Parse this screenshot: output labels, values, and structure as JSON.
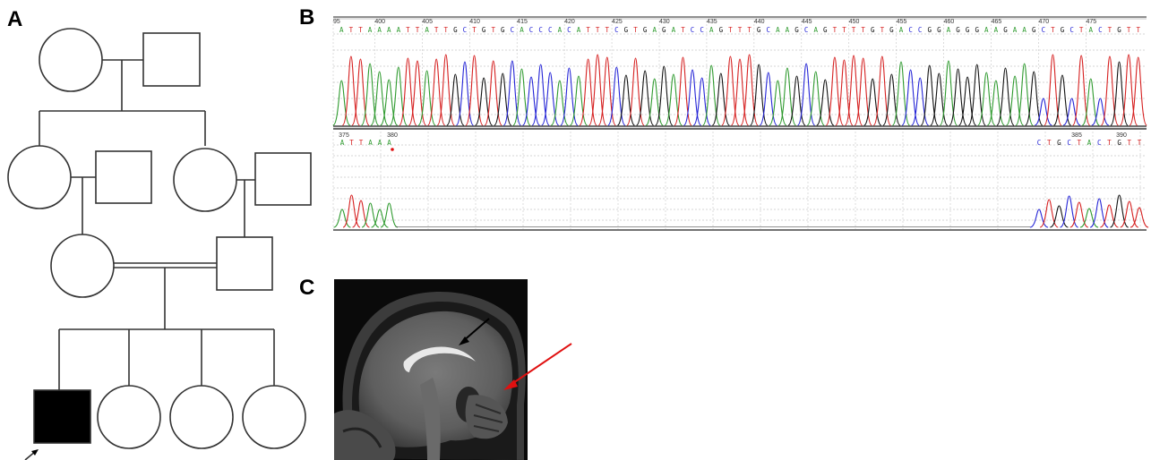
{
  "panels": {
    "a": "A",
    "b": "B",
    "c": "C"
  },
  "colors": {
    "A": "#2e9a2e",
    "C": "#2424d6",
    "G": "#111111",
    "T": "#d62020",
    "proband_fill": "#000000",
    "mri_arrow_corpus": "#000000",
    "mri_arrow_cerebellum": "#e01010"
  },
  "pedigree": {
    "generations": [
      {
        "individuals": [
          {
            "sex": "female",
            "affected": false
          },
          {
            "sex": "male",
            "affected": false
          }
        ]
      },
      {
        "individuals": [
          {
            "sex": "female",
            "affected": false
          },
          {
            "sex": "male",
            "affected": false
          },
          {
            "sex": "female",
            "affected": false
          },
          {
            "sex": "male",
            "affected": false
          }
        ]
      },
      {
        "individuals": [
          {
            "sex": "female",
            "affected": false
          },
          {
            "sex": "male",
            "affected": false
          }
        ],
        "consanguineous": true
      },
      {
        "individuals": [
          {
            "sex": "male",
            "affected": true,
            "proband": true
          },
          {
            "sex": "female",
            "affected": false
          },
          {
            "sex": "female",
            "affected": false
          },
          {
            "sex": "female",
            "affected": false
          }
        ]
      }
    ]
  },
  "sequencing": {
    "reference": {
      "sequence": "ATTAAAATTATTGCTGTGCACCCACATTTCGTGAGATCCAGTTTGCAAGCAGTTTTGTGACCGGAGGGAAGAAGCTGCTACTGTT",
      "ticks": [
        "95",
        "400",
        "405",
        "410",
        "415",
        "420",
        "425",
        "430",
        "435",
        "440",
        "445",
        "450",
        "455",
        "460",
        "465",
        "470",
        "475"
      ]
    },
    "patient": {
      "left_sequence": "ATTAAA",
      "right_sequence": "CTGCTACTGTT",
      "ticks": [
        "375",
        "380",
        "385",
        "390"
      ]
    }
  }
}
